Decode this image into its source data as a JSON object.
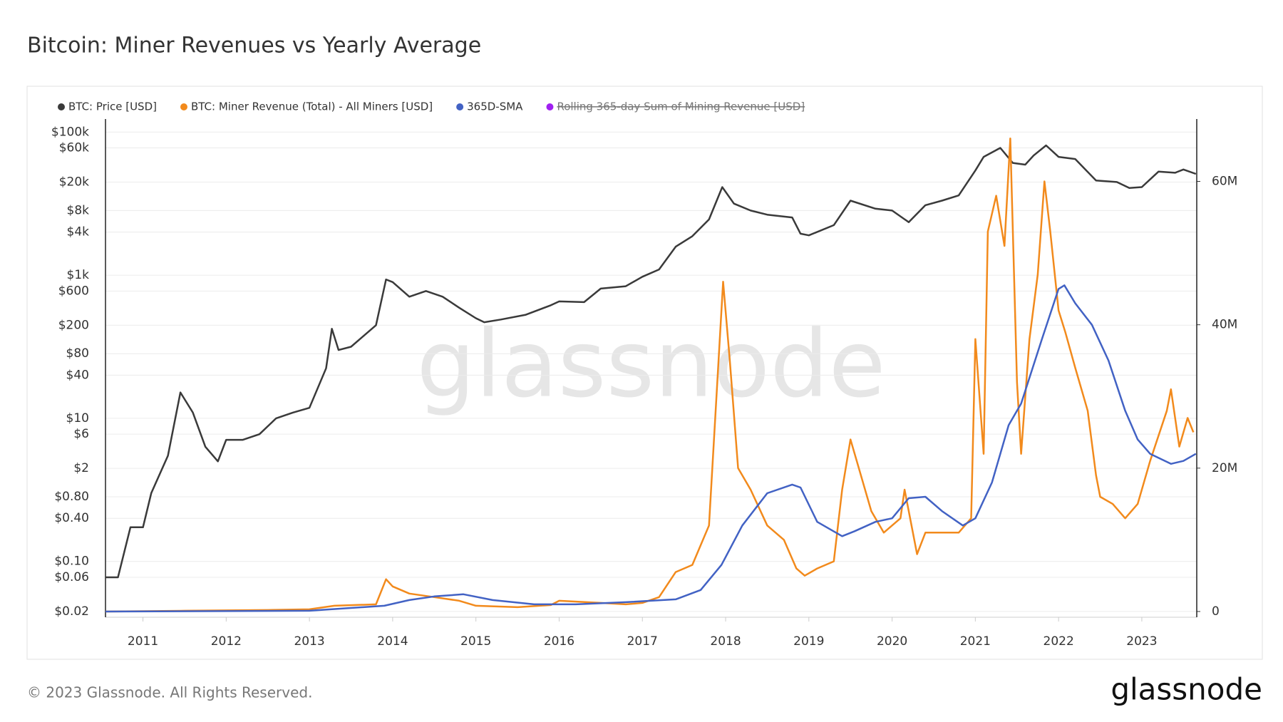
{
  "chart_data": {
    "type": "line",
    "title": "Bitcoin: Miner Revenues vs Yearly Average",
    "footer": "© 2023 Glassnode. All Rights Reserved.",
    "brand": "glassnode",
    "watermark": "glassnode",
    "legend": "top-left",
    "grid": true,
    "ylog": true,
    "xlim": [
      2010.55,
      2023.66
    ],
    "xticks": [
      2011,
      2012,
      2013,
      2014,
      2015,
      2016,
      2017,
      2018,
      2019,
      2020,
      2021,
      2022,
      2023
    ],
    "ylim": [
      0.0166,
      152000
    ],
    "yticks": [
      {
        "value": 0.02,
        "label": "$0.02"
      },
      {
        "value": 0.06,
        "label": "$0.06"
      },
      {
        "value": 0.1,
        "label": "$0.10"
      },
      {
        "value": 0.4,
        "label": "$0.40"
      },
      {
        "value": 0.8,
        "label": "$0.80"
      },
      {
        "value": 2,
        "label": "$2"
      },
      {
        "value": 6,
        "label": "$6"
      },
      {
        "value": 10,
        "label": "$10"
      },
      {
        "value": 40,
        "label": "$40"
      },
      {
        "value": 80,
        "label": "$80"
      },
      {
        "value": 200,
        "label": "$200"
      },
      {
        "value": 600,
        "label": "$600"
      },
      {
        "value": 1000,
        "label": "$1k"
      },
      {
        "value": 4000,
        "label": "$4k"
      },
      {
        "value": 8000,
        "label": "$8k"
      },
      {
        "value": 20000,
        "label": "$20k"
      },
      {
        "value": 60000,
        "label": "$60k"
      },
      {
        "value": 100000,
        "label": "$100k"
      }
    ],
    "y2lim": [
      -800000,
      68700000
    ],
    "y2ticks": [
      0,
      {
        "value": 20000000,
        "label": "20M"
      },
      {
        "value": 40000000,
        "label": "40M"
      },
      {
        "value": 60000000,
        "label": "60M"
      }
    ],
    "series": [
      {
        "name": "BTC: Price [USD]",
        "color": "#3a3a3a",
        "x": [
          2010.55,
          2010.7,
          2010.85,
          2011.0,
          2011.1,
          2011.3,
          2011.45,
          2011.6,
          2011.75,
          2011.9,
          2012.0,
          2012.2,
          2012.4,
          2012.6,
          2012.8,
          2013.0,
          2013.2,
          2013.27,
          2013.35,
          2013.5,
          2013.8,
          2013.92,
          2014.0,
          2014.2,
          2014.4,
          2014.6,
          2014.8,
          2015.0,
          2015.1,
          2015.3,
          2015.6,
          2015.9,
          2016.0,
          2016.3,
          2016.5,
          2016.8,
          2017.0,
          2017.2,
          2017.4,
          2017.6,
          2017.8,
          2017.96,
          2018.1,
          2018.3,
          2018.5,
          2018.8,
          2018.9,
          2019.0,
          2019.3,
          2019.5,
          2019.8,
          2020.0,
          2020.2,
          2020.4,
          2020.6,
          2020.8,
          2021.0,
          2021.1,
          2021.3,
          2021.45,
          2021.6,
          2021.7,
          2021.85,
          2022.0,
          2022.2,
          2022.45,
          2022.7,
          2022.85,
          2023.0,
          2023.2,
          2023.4,
          2023.5,
          2023.65
        ],
        "values": [
          0.06,
          0.06,
          0.3,
          0.3,
          0.9,
          3,
          23,
          12,
          4,
          2.5,
          5,
          5,
          6,
          10,
          12,
          14,
          50,
          178,
          90,
          100,
          200,
          870,
          800,
          500,
          600,
          500,
          350,
          250,
          220,
          240,
          280,
          380,
          430,
          420,
          650,
          700,
          950,
          1200,
          2500,
          3500,
          6000,
          17000,
          10000,
          8000,
          7000,
          6400,
          3800,
          3600,
          5000,
          11000,
          8500,
          8000,
          5500,
          9500,
          11000,
          13000,
          29000,
          45000,
          60000,
          37000,
          35000,
          47000,
          65000,
          45000,
          42000,
          21000,
          20000,
          16500,
          17000,
          28000,
          27000,
          30000,
          26000
        ]
      },
      {
        "name": "BTC: Miner Revenue (Total) - All Miners [USD]",
        "color": "#f28a1c",
        "axis": "y2",
        "x": [
          2010.55,
          2011.5,
          2012.5,
          2013.0,
          2013.3,
          2013.8,
          2013.92,
          2014.0,
          2014.2,
          2014.5,
          2014.8,
          2015.0,
          2015.5,
          2015.9,
          2016.0,
          2016.5,
          2016.8,
          2017.0,
          2017.2,
          2017.4,
          2017.6,
          2017.8,
          2017.97,
          2018.05,
          2018.15,
          2018.3,
          2018.5,
          2018.7,
          2018.85,
          2018.95,
          2019.1,
          2019.3,
          2019.4,
          2019.5,
          2019.6,
          2019.75,
          2019.9,
          2020.1,
          2020.15,
          2020.3,
          2020.4,
          2020.6,
          2020.8,
          2020.95,
          2021.0,
          2021.1,
          2021.15,
          2021.25,
          2021.35,
          2021.42,
          2021.5,
          2021.55,
          2021.65,
          2021.75,
          2021.83,
          2021.9,
          2022.0,
          2022.08,
          2022.2,
          2022.35,
          2022.45,
          2022.5,
          2022.65,
          2022.8,
          2022.95,
          2023.1,
          2023.3,
          2023.35,
          2023.45,
          2023.55,
          2023.62
        ],
        "values": [
          0,
          100000,
          200000,
          300000,
          800000,
          1000000,
          4500000,
          3500000,
          2500000,
          2000000,
          1500000,
          800000,
          600000,
          900000,
          1500000,
          1200000,
          1000000,
          1200000,
          2000000,
          5500000,
          6500000,
          12000000,
          46000000,
          35000000,
          20000000,
          17000000,
          12000000,
          10000000,
          6000000,
          5000000,
          6000000,
          7000000,
          17000000,
          24000000,
          20000000,
          14000000,
          11000000,
          13000000,
          17000000,
          8000000,
          11000000,
          11000000,
          11000000,
          13000000,
          38000000,
          22000000,
          53000000,
          58000000,
          51000000,
          66000000,
          32000000,
          22000000,
          38000000,
          47000000,
          60000000,
          53000000,
          42000000,
          39000000,
          34000000,
          28000000,
          19000000,
          16000000,
          15000000,
          13000000,
          15000000,
          21000000,
          28000000,
          31000000,
          23000000,
          27000000,
          25000000
        ]
      },
      {
        "name": "365D-SMA",
        "color": "#4262c4",
        "axis": "y2",
        "x": [
          2010.55,
          2013.0,
          2013.9,
          2014.2,
          2014.5,
          2014.85,
          2015.2,
          2015.7,
          2016.2,
          2016.8,
          2017.4,
          2017.7,
          2017.95,
          2018.2,
          2018.5,
          2018.8,
          2018.9,
          2019.1,
          2019.4,
          2019.55,
          2019.8,
          2020.0,
          2020.2,
          2020.4,
          2020.6,
          2020.85,
          2021.0,
          2021.2,
          2021.4,
          2021.55,
          2021.8,
          2022.0,
          2022.07,
          2022.2,
          2022.4,
          2022.6,
          2022.8,
          2022.95,
          2023.1,
          2023.35,
          2023.5,
          2023.65
        ],
        "values": [
          0,
          100000,
          800000,
          1600000,
          2100000,
          2400000,
          1600000,
          1000000,
          1000000,
          1300000,
          1700000,
          3000000,
          6500000,
          12000000,
          16500000,
          17700000,
          17300000,
          12500000,
          10500000,
          11200000,
          12500000,
          13000000,
          15800000,
          16000000,
          14000000,
          12000000,
          13000000,
          18000000,
          26000000,
          29000000,
          38000000,
          45000000,
          45500000,
          43000000,
          40000000,
          35000000,
          28000000,
          24000000,
          22000000,
          20600000,
          21000000,
          22000000
        ]
      },
      {
        "name": "Rolling 365-day Sum of Mining Revenue [USD]",
        "color": "#a020f0",
        "hidden": true
      }
    ]
  }
}
